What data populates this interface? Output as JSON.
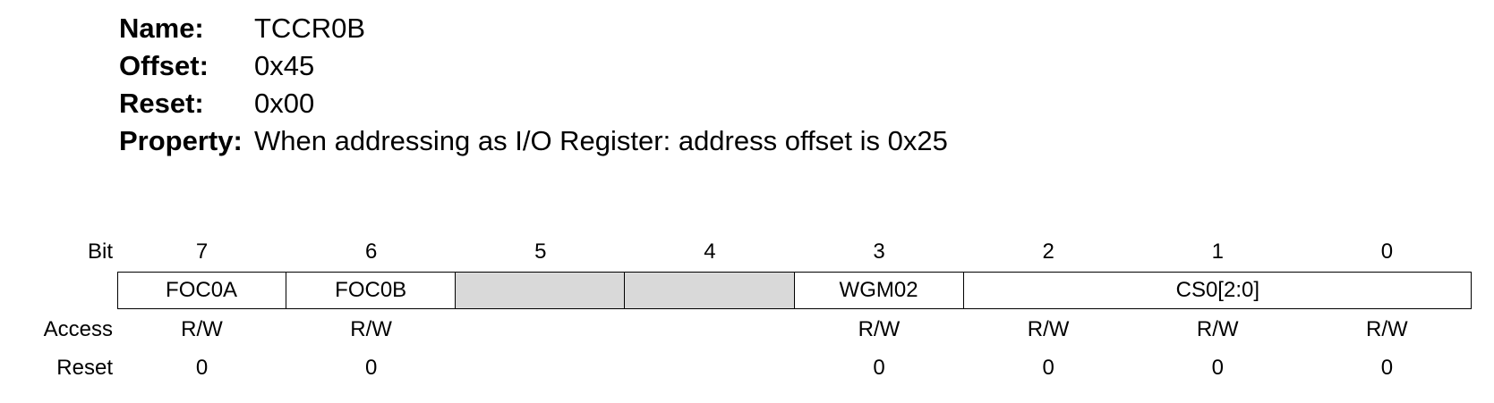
{
  "register": {
    "name_label": "Name:",
    "name": "TCCR0B",
    "offset_label": "Offset:",
    "offset": "0x45",
    "reset_label": "Reset:",
    "reset": "0x00",
    "property_label": "Property:",
    "property": "When addressing as I/O Register: address offset is 0x25"
  },
  "table": {
    "bit_label": "Bit",
    "access_label": "Access",
    "reset_label": "Reset",
    "bits": [
      "7",
      "6",
      "5",
      "4",
      "3",
      "2",
      "1",
      "0"
    ],
    "fields": [
      {
        "name": "FOC0A",
        "reserved": false
      },
      {
        "name": "FOC0B",
        "reserved": false
      },
      {
        "name": "",
        "reserved": true
      },
      {
        "name": "",
        "reserved": true
      },
      {
        "name": "WGM02",
        "reserved": false
      },
      {
        "name": "CS0[2:0]",
        "reserved": false
      }
    ],
    "access": [
      "R/W",
      "R/W",
      "",
      "",
      "R/W",
      "R/W",
      "R/W",
      "R/W"
    ],
    "reset": [
      "0",
      "0",
      "",
      "",
      "0",
      "0",
      "0",
      "0"
    ],
    "reserved_color": "#d9d9d9"
  }
}
